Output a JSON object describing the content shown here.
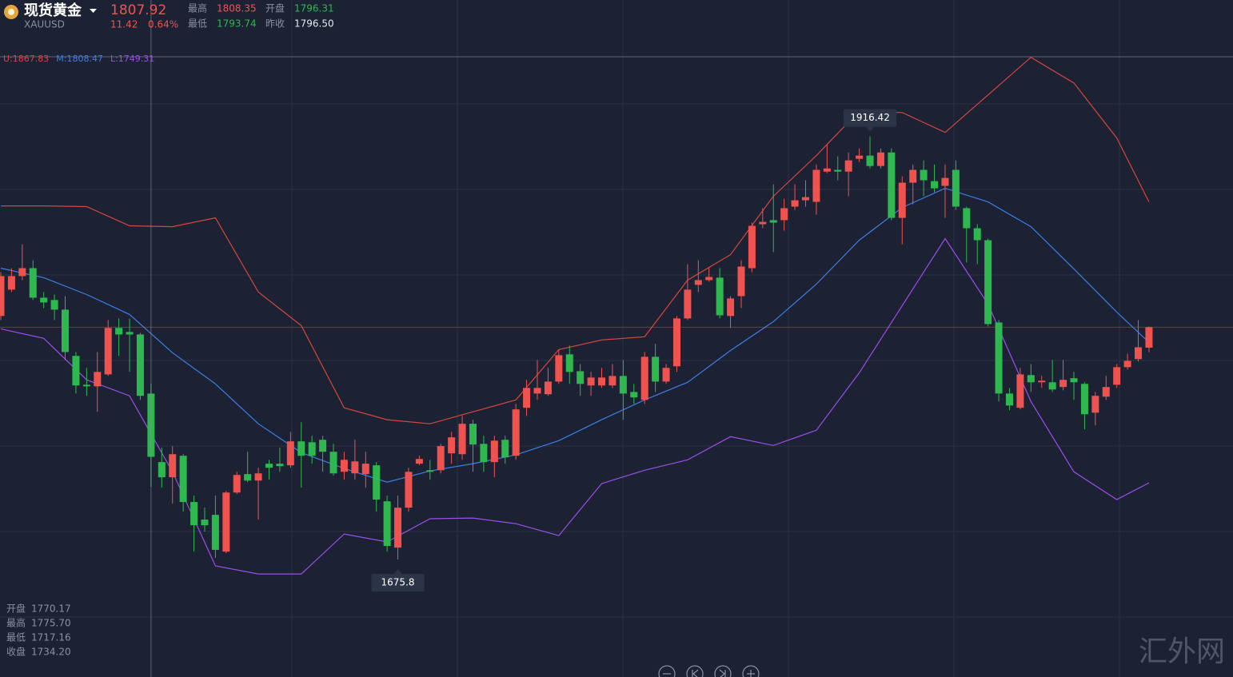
{
  "header": {
    "name": "现货黄金",
    "symbol": "XAUUSD",
    "price": "1807.92",
    "change": "11.42",
    "change_pct": "0.64%",
    "quotes": [
      {
        "label": "最高",
        "value": "1808.35",
        "color": "#ef5350"
      },
      {
        "label": "开盘",
        "value": "1796.31",
        "color": "#2fb84f"
      },
      {
        "label": "最低",
        "value": "1793.74",
        "color": "#2fb84f"
      },
      {
        "label": "昨收",
        "value": "1796.50",
        "color": "#e6e8ee"
      }
    ],
    "watermark": "汇外网"
  },
  "chart_data": {
    "type": "candlestick",
    "up_color": "#ef5350",
    "down_color": "#2fb84f",
    "ylim": [
      1609,
      1994
    ],
    "crosshair": {
      "index": 14,
      "readout": [
        {
          "label": "开盘",
          "value": "1770.17"
        },
        {
          "label": "最高",
          "value": "1775.70"
        },
        {
          "label": "最低",
          "value": "1717.16"
        },
        {
          "label": "收盘",
          "value": "1734.20"
        }
      ]
    },
    "candles": [
      {
        "open": 1814.3,
        "high": 1839.2,
        "low": 1812.0,
        "close": 1837.0
      },
      {
        "open": 1829.3,
        "high": 1841.5,
        "low": 1827.9,
        "close": 1837.0
      },
      {
        "open": 1837.0,
        "high": 1855.1,
        "low": 1834.7,
        "close": 1841.5
      },
      {
        "open": 1841.5,
        "high": 1846.0,
        "low": 1823.4,
        "close": 1824.7
      },
      {
        "open": 1824.7,
        "high": 1827.9,
        "low": 1818.8,
        "close": 1822.0
      },
      {
        "open": 1823.4,
        "high": 1826.5,
        "low": 1812.0,
        "close": 1817.9
      },
      {
        "open": 1817.9,
        "high": 1825.6,
        "low": 1789.3,
        "close": 1793.8
      },
      {
        "open": 1791.6,
        "high": 1793.8,
        "low": 1770.2,
        "close": 1774.8
      },
      {
        "open": 1775.2,
        "high": 1784.8,
        "low": 1768.9,
        "close": 1774.3
      },
      {
        "open": 1774.3,
        "high": 1793.8,
        "low": 1759.8,
        "close": 1782.5
      },
      {
        "open": 1781.1,
        "high": 1812.0,
        "low": 1780.2,
        "close": 1807.5
      },
      {
        "open": 1807.5,
        "high": 1812.9,
        "low": 1791.6,
        "close": 1803.8
      },
      {
        "open": 1805.2,
        "high": 1812.9,
        "low": 1782.5,
        "close": 1803.8
      },
      {
        "open": 1803.8,
        "high": 1804.7,
        "low": 1766.6,
        "close": 1768.9
      },
      {
        "open": 1770.17,
        "high": 1775.7,
        "low": 1717.16,
        "close": 1734.2
      },
      {
        "open": 1731.2,
        "high": 1739.4,
        "low": 1716.7,
        "close": 1722.6
      },
      {
        "open": 1722.6,
        "high": 1740.3,
        "low": 1707.6,
        "close": 1735.7
      },
      {
        "open": 1734.8,
        "high": 1735.7,
        "low": 1703.0,
        "close": 1708.5
      },
      {
        "open": 1708.5,
        "high": 1712.1,
        "low": 1680.3,
        "close": 1695.3
      },
      {
        "open": 1698.5,
        "high": 1705.3,
        "low": 1691.7,
        "close": 1695.3
      },
      {
        "open": 1701.2,
        "high": 1712.1,
        "low": 1676.71,
        "close": 1681.3
      },
      {
        "open": 1680.3,
        "high": 1714.8,
        "low": 1679.4,
        "close": 1713.9
      },
      {
        "open": 1713.9,
        "high": 1725.7,
        "low": 1713.0,
        "close": 1723.9
      },
      {
        "open": 1724.4,
        "high": 1737.1,
        "low": 1719.8,
        "close": 1720.7
      },
      {
        "open": 1720.7,
        "high": 1728.0,
        "low": 1698.5,
        "close": 1724.8
      },
      {
        "open": 1730.3,
        "high": 1732.5,
        "low": 1721.2,
        "close": 1728.0
      },
      {
        "open": 1730.3,
        "high": 1739.4,
        "low": 1725.7,
        "close": 1728.9
      },
      {
        "open": 1729.4,
        "high": 1748.4,
        "low": 1728.0,
        "close": 1743.0
      },
      {
        "open": 1743.0,
        "high": 1753.9,
        "low": 1716.7,
        "close": 1734.8
      },
      {
        "open": 1742.5,
        "high": 1746.2,
        "low": 1730.3,
        "close": 1734.8
      },
      {
        "open": 1743.9,
        "high": 1746.2,
        "low": 1725.7,
        "close": 1737.1
      },
      {
        "open": 1737.1,
        "high": 1741.6,
        "low": 1723.5,
        "close": 1724.8
      },
      {
        "open": 1725.7,
        "high": 1737.1,
        "low": 1721.2,
        "close": 1732.5
      },
      {
        "open": 1724.8,
        "high": 1743.9,
        "low": 1721.2,
        "close": 1731.6
      },
      {
        "open": 1724.4,
        "high": 1737.1,
        "low": 1716.7,
        "close": 1730.3
      },
      {
        "open": 1729.4,
        "high": 1731.2,
        "low": 1703.0,
        "close": 1709.9
      },
      {
        "open": 1708.9,
        "high": 1712.1,
        "low": 1680.3,
        "close": 1683.5
      },
      {
        "open": 1682.6,
        "high": 1712.1,
        "low": 1675.8,
        "close": 1705.3
      },
      {
        "open": 1705.3,
        "high": 1728.0,
        "low": 1703.0,
        "close": 1725.7
      },
      {
        "open": 1730.3,
        "high": 1734.8,
        "low": 1729.4,
        "close": 1733.0
      },
      {
        "open": 1726.6,
        "high": 1732.5,
        "low": 1721.2,
        "close": 1725.7
      },
      {
        "open": 1726.6,
        "high": 1741.6,
        "low": 1724.8,
        "close": 1740.3
      },
      {
        "open": 1736.2,
        "high": 1748.4,
        "low": 1730.3,
        "close": 1745.3
      },
      {
        "open": 1735.7,
        "high": 1757.5,
        "low": 1732.5,
        "close": 1753.0
      },
      {
        "open": 1753.0,
        "high": 1755.3,
        "low": 1725.7,
        "close": 1741.2
      },
      {
        "open": 1741.6,
        "high": 1746.2,
        "low": 1725.7,
        "close": 1731.2
      },
      {
        "open": 1731.2,
        "high": 1746.2,
        "low": 1722.6,
        "close": 1743.4
      },
      {
        "open": 1743.9,
        "high": 1746.2,
        "low": 1730.3,
        "close": 1733.9
      },
      {
        "open": 1734.8,
        "high": 1764.3,
        "low": 1732.5,
        "close": 1761.2
      },
      {
        "open": 1762.1,
        "high": 1778.0,
        "low": 1757.5,
        "close": 1773.4
      },
      {
        "open": 1770.2,
        "high": 1789.3,
        "low": 1766.6,
        "close": 1773.4
      },
      {
        "open": 1769.8,
        "high": 1784.8,
        "low": 1768.9,
        "close": 1777.0
      },
      {
        "open": 1777.0,
        "high": 1795.2,
        "low": 1775.7,
        "close": 1792.0
      },
      {
        "open": 1792.5,
        "high": 1797.5,
        "low": 1775.7,
        "close": 1782.5
      },
      {
        "open": 1782.9,
        "high": 1787.0,
        "low": 1768.9,
        "close": 1775.7
      },
      {
        "open": 1774.8,
        "high": 1782.5,
        "low": 1768.9,
        "close": 1779.3
      },
      {
        "open": 1774.8,
        "high": 1784.8,
        "low": 1773.4,
        "close": 1779.3
      },
      {
        "open": 1774.8,
        "high": 1787.0,
        "low": 1773.4,
        "close": 1780.2
      },
      {
        "open": 1780.2,
        "high": 1789.3,
        "low": 1755.3,
        "close": 1770.2
      },
      {
        "open": 1771.1,
        "high": 1775.7,
        "low": 1764.3,
        "close": 1768.0
      },
      {
        "open": 1766.6,
        "high": 1793.8,
        "low": 1764.3,
        "close": 1791.1
      },
      {
        "open": 1791.1,
        "high": 1798.4,
        "low": 1771.1,
        "close": 1777.0
      },
      {
        "open": 1777.0,
        "high": 1787.0,
        "low": 1775.7,
        "close": 1784.8
      },
      {
        "open": 1785.7,
        "high": 1814.3,
        "low": 1782.5,
        "close": 1812.9
      },
      {
        "open": 1812.9,
        "high": 1843.8,
        "low": 1812.0,
        "close": 1829.3
      },
      {
        "open": 1832.0,
        "high": 1846.0,
        "low": 1827.9,
        "close": 1834.7
      },
      {
        "open": 1834.7,
        "high": 1841.5,
        "low": 1833.8,
        "close": 1836.5
      },
      {
        "open": 1836.1,
        "high": 1841.5,
        "low": 1812.9,
        "close": 1814.7
      },
      {
        "open": 1814.3,
        "high": 1825.6,
        "low": 1807.5,
        "close": 1824.3
      },
      {
        "open": 1825.6,
        "high": 1846.0,
        "low": 1818.8,
        "close": 1842.4
      },
      {
        "open": 1841.5,
        "high": 1867.4,
        "low": 1839.2,
        "close": 1865.6
      },
      {
        "open": 1866.5,
        "high": 1875.6,
        "low": 1864.2,
        "close": 1867.8
      },
      {
        "open": 1868.8,
        "high": 1889.2,
        "low": 1850.6,
        "close": 1867.4
      },
      {
        "open": 1868.8,
        "high": 1881.0,
        "low": 1862.8,
        "close": 1875.6
      },
      {
        "open": 1876.5,
        "high": 1889.2,
        "low": 1874.6,
        "close": 1880.1
      },
      {
        "open": 1880.1,
        "high": 1891.5,
        "low": 1876.5,
        "close": 1881.9
      },
      {
        "open": 1879.2,
        "high": 1900.5,
        "low": 1871.9,
        "close": 1897.4
      },
      {
        "open": 1896.4,
        "high": 1911.9,
        "low": 1895.5,
        "close": 1898.2
      },
      {
        "open": 1897.4,
        "high": 1905.1,
        "low": 1891.5,
        "close": 1896.4
      },
      {
        "open": 1896.4,
        "high": 1907.3,
        "low": 1882.4,
        "close": 1902.8
      },
      {
        "open": 1903.7,
        "high": 1909.6,
        "low": 1901.9,
        "close": 1905.5
      },
      {
        "open": 1905.5,
        "high": 1916.42,
        "low": 1898.2,
        "close": 1899.6
      },
      {
        "open": 1899.6,
        "high": 1909.6,
        "low": 1898.2,
        "close": 1907.3
      },
      {
        "open": 1907.3,
        "high": 1909.6,
        "low": 1868.8,
        "close": 1870.1
      },
      {
        "open": 1870.1,
        "high": 1893.7,
        "low": 1855.1,
        "close": 1890.1
      },
      {
        "open": 1890.1,
        "high": 1900.5,
        "low": 1877.8,
        "close": 1897.4
      },
      {
        "open": 1897.4,
        "high": 1902.8,
        "low": 1882.4,
        "close": 1891.5
      },
      {
        "open": 1891.0,
        "high": 1900.5,
        "low": 1884.6,
        "close": 1886.9
      },
      {
        "open": 1888.3,
        "high": 1900.5,
        "low": 1870.1,
        "close": 1892.8
      },
      {
        "open": 1897.4,
        "high": 1902.8,
        "low": 1874.6,
        "close": 1876.5
      },
      {
        "open": 1875.6,
        "high": 1876.5,
        "low": 1844.7,
        "close": 1864.2
      },
      {
        "open": 1864.2,
        "high": 1866.5,
        "low": 1843.8,
        "close": 1857.4
      },
      {
        "open": 1857.4,
        "high": 1858.3,
        "low": 1808.4,
        "close": 1809.7
      },
      {
        "open": 1810.6,
        "high": 1812.0,
        "low": 1765.7,
        "close": 1770.2
      },
      {
        "open": 1770.2,
        "high": 1773.4,
        "low": 1760.7,
        "close": 1763.4
      },
      {
        "open": 1762.1,
        "high": 1784.8,
        "low": 1761.2,
        "close": 1781.1
      },
      {
        "open": 1780.7,
        "high": 1787.0,
        "low": 1771.1,
        "close": 1776.6
      },
      {
        "open": 1776.6,
        "high": 1780.2,
        "low": 1773.4,
        "close": 1777.5
      },
      {
        "open": 1776.6,
        "high": 1789.3,
        "low": 1771.1,
        "close": 1772.5
      },
      {
        "open": 1773.9,
        "high": 1789.3,
        "low": 1772.0,
        "close": 1778.0
      },
      {
        "open": 1778.9,
        "high": 1782.5,
        "low": 1766.6,
        "close": 1776.6
      },
      {
        "open": 1775.7,
        "high": 1776.6,
        "low": 1749.8,
        "close": 1758.4
      },
      {
        "open": 1759.3,
        "high": 1771.1,
        "low": 1752.1,
        "close": 1768.9
      },
      {
        "open": 1768.4,
        "high": 1780.2,
        "low": 1766.6,
        "close": 1773.9
      },
      {
        "open": 1775.2,
        "high": 1787.0,
        "low": 1773.4,
        "close": 1785.2
      },
      {
        "open": 1785.2,
        "high": 1792.9,
        "low": 1783.9,
        "close": 1788.8
      },
      {
        "open": 1789.8,
        "high": 1812.0,
        "low": 1788.4,
        "close": 1796.5
      },
      {
        "open": 1796.31,
        "high": 1808.35,
        "low": 1793.74,
        "close": 1807.92
      }
    ],
    "bands": [
      {
        "name": "U:1867.83",
        "color": "#d4473f",
        "x": [
          0,
          4,
          8,
          12,
          16,
          20,
          24,
          28,
          32,
          36,
          40,
          44,
          48,
          52,
          56,
          60,
          64,
          68,
          72,
          76,
          80,
          84,
          88,
          92,
          96,
          100,
          104,
          107
        ],
        "values": [
          1876.9,
          1876.9,
          1876.5,
          1865.6,
          1865.1,
          1870.1,
          1827.9,
          1808.8,
          1762.1,
          1755.3,
          1753.0,
          1759.8,
          1766.6,
          1795.2,
          1800.7,
          1802.5,
          1834.7,
          1849.2,
          1882.4,
          1905.5,
          1930.9,
          1930.0,
          1918.7,
          1940.0,
          1961.4,
          1946.8,
          1915.5,
          1879.2
        ]
      },
      {
        "name": "M:1808.47",
        "color": "#3d7fe6",
        "x": [
          0,
          4,
          8,
          12,
          16,
          20,
          24,
          28,
          32,
          36,
          40,
          44,
          48,
          52,
          56,
          60,
          64,
          68,
          72,
          76,
          80,
          84,
          88,
          92,
          96,
          100,
          104,
          107
        ],
        "values": [
          1841.5,
          1836.1,
          1826.5,
          1815.2,
          1793.4,
          1775.7,
          1753.0,
          1736.6,
          1727.6,
          1719.8,
          1726.2,
          1730.3,
          1735.3,
          1743.4,
          1755.3,
          1766.6,
          1776.6,
          1794.7,
          1811.1,
          1832.4,
          1857.4,
          1876.0,
          1886.9,
          1879.2,
          1865.1,
          1841.1,
          1816.5,
          1799.3
        ]
      },
      {
        "name": "L:1749.31",
        "color": "#9a4fe8",
        "x": [
          0,
          4,
          8,
          12,
          16,
          20,
          24,
          28,
          32,
          36,
          40,
          44,
          48,
          52,
          56,
          60,
          64,
          68,
          72,
          76,
          80,
          84,
          88,
          92,
          96,
          100,
          104,
          107
        ],
        "values": [
          1807.0,
          1801.6,
          1778.0,
          1768.9,
          1725.7,
          1672.2,
          1667.6,
          1667.6,
          1690.3,
          1685.8,
          1699.0,
          1699.4,
          1696.2,
          1689.4,
          1719.0,
          1726.6,
          1732.5,
          1745.7,
          1740.7,
          1749.3,
          1782.0,
          1820.2,
          1858.3,
          1821.1,
          1765.7,
          1725.7,
          1709.9,
          1719.4
        ]
      }
    ]
  }
}
